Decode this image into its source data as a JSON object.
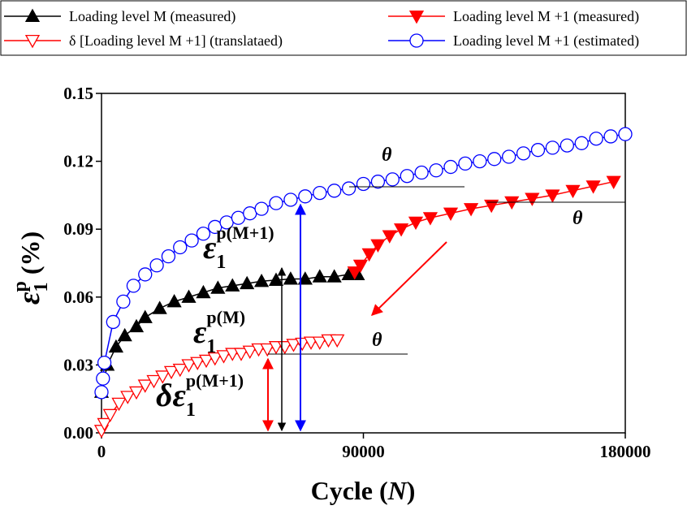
{
  "chart_data": {
    "type": "line",
    "x_label": {
      "text": "Cycle (",
      "italic": "N",
      "close": ")"
    },
    "y_label": {
      "symbol": "ε",
      "subscript": "1",
      "superscript": "p",
      "unit": " (%)"
    },
    "xlim": [
      0,
      180000
    ],
    "xticks": [
      0,
      90000,
      180000
    ],
    "ylim": [
      0,
      0.15
    ],
    "yticks": [
      {
        "value": 0,
        "label": "0.00"
      },
      0.03,
      0.06,
      0.09,
      0.12,
      0.15
    ],
    "legend": "top",
    "series": [
      {
        "name": "Loading level M (measured)",
        "color": "#000000",
        "marker": "triangle-up",
        "filled": true,
        "x": [
          0,
          2000,
          5000,
          8000,
          12000,
          15000,
          20000,
          25000,
          30000,
          35000,
          40000,
          45000,
          50000,
          55000,
          60000,
          65000,
          70000,
          75000,
          80000,
          85000,
          88000
        ],
        "values": [
          0.018,
          0.03,
          0.038,
          0.043,
          0.047,
          0.051,
          0.055,
          0.058,
          0.06,
          0.062,
          0.064,
          0.065,
          0.066,
          0.067,
          0.0675,
          0.068,
          0.068,
          0.069,
          0.069,
          0.07,
          0.07
        ]
      },
      {
        "name": "Loading level M +1 (measured)",
        "color": "#ff0000",
        "marker": "triangle-down",
        "filled": true,
        "x": [
          87000,
          89000,
          92000,
          95000,
          99000,
          103000,
          108000,
          113000,
          120000,
          127000,
          134000,
          141000,
          148000,
          155000,
          162000,
          169000,
          176000
        ],
        "values": [
          0.071,
          0.074,
          0.079,
          0.083,
          0.087,
          0.09,
          0.093,
          0.095,
          0.097,
          0.099,
          0.1005,
          0.102,
          0.1035,
          0.105,
          0.107,
          0.109,
          0.111
        ]
      },
      {
        "name": "δ [Loading level M +1] (translataed)",
        "color": "#ff0000",
        "marker": "triangle-down",
        "filled": false,
        "x": [
          0,
          1000,
          3000,
          6000,
          9000,
          12000,
          15000,
          18000,
          21000,
          24000,
          27000,
          30000,
          33000,
          36000,
          39000,
          42000,
          45000,
          48000,
          51000,
          54000,
          57000,
          60000,
          63000,
          66000,
          69000,
          72000,
          75000,
          78000,
          81000
        ],
        "values": [
          0.001,
          0.004,
          0.008,
          0.013,
          0.016,
          0.018,
          0.021,
          0.023,
          0.025,
          0.027,
          0.028,
          0.03,
          0.031,
          0.032,
          0.033,
          0.034,
          0.035,
          0.035,
          0.036,
          0.037,
          0.037,
          0.038,
          0.038,
          0.039,
          0.0395,
          0.04,
          0.04,
          0.041,
          0.041
        ]
      },
      {
        "name": "Loading level M +1 (estimated)",
        "color": "#0000ff",
        "marker": "circle",
        "filled": false,
        "x": [
          0,
          500,
          1000,
          4000,
          7500,
          11000,
          15000,
          19000,
          23000,
          27000,
          31000,
          35000,
          39000,
          43000,
          47000,
          51000,
          55000,
          60000,
          65000,
          70000,
          75000,
          80000,
          85000,
          90000,
          95000,
          100000,
          105000,
          110000,
          115000,
          120000,
          125000,
          130000,
          135000,
          140000,
          145000,
          150000,
          155000,
          160000,
          165000,
          170000,
          175000,
          180000
        ],
        "values": [
          0.018,
          0.024,
          0.031,
          0.049,
          0.058,
          0.065,
          0.07,
          0.074,
          0.078,
          0.082,
          0.085,
          0.088,
          0.091,
          0.093,
          0.095,
          0.097,
          0.099,
          0.1015,
          0.103,
          0.1045,
          0.106,
          0.107,
          0.108,
          0.11,
          0.111,
          0.112,
          0.1135,
          0.115,
          0.116,
          0.1175,
          0.119,
          0.12,
          0.121,
          0.122,
          0.1235,
          0.125,
          0.126,
          0.127,
          0.128,
          0.13,
          0.131,
          0.132
        ]
      }
    ],
    "annotations": [
      {
        "text": "θ"
      },
      {
        "text": "θ"
      },
      {
        "text": "θ"
      },
      {
        "symbol": "ε",
        "subscript": "1",
        "superscript": "p(M+1)"
      },
      {
        "symbol": "ε",
        "subscript": "1",
        "superscript": "p(M)"
      },
      {
        "symbol": "δε",
        "subscript": "1",
        "superscript": "p(M+1)"
      }
    ]
  }
}
